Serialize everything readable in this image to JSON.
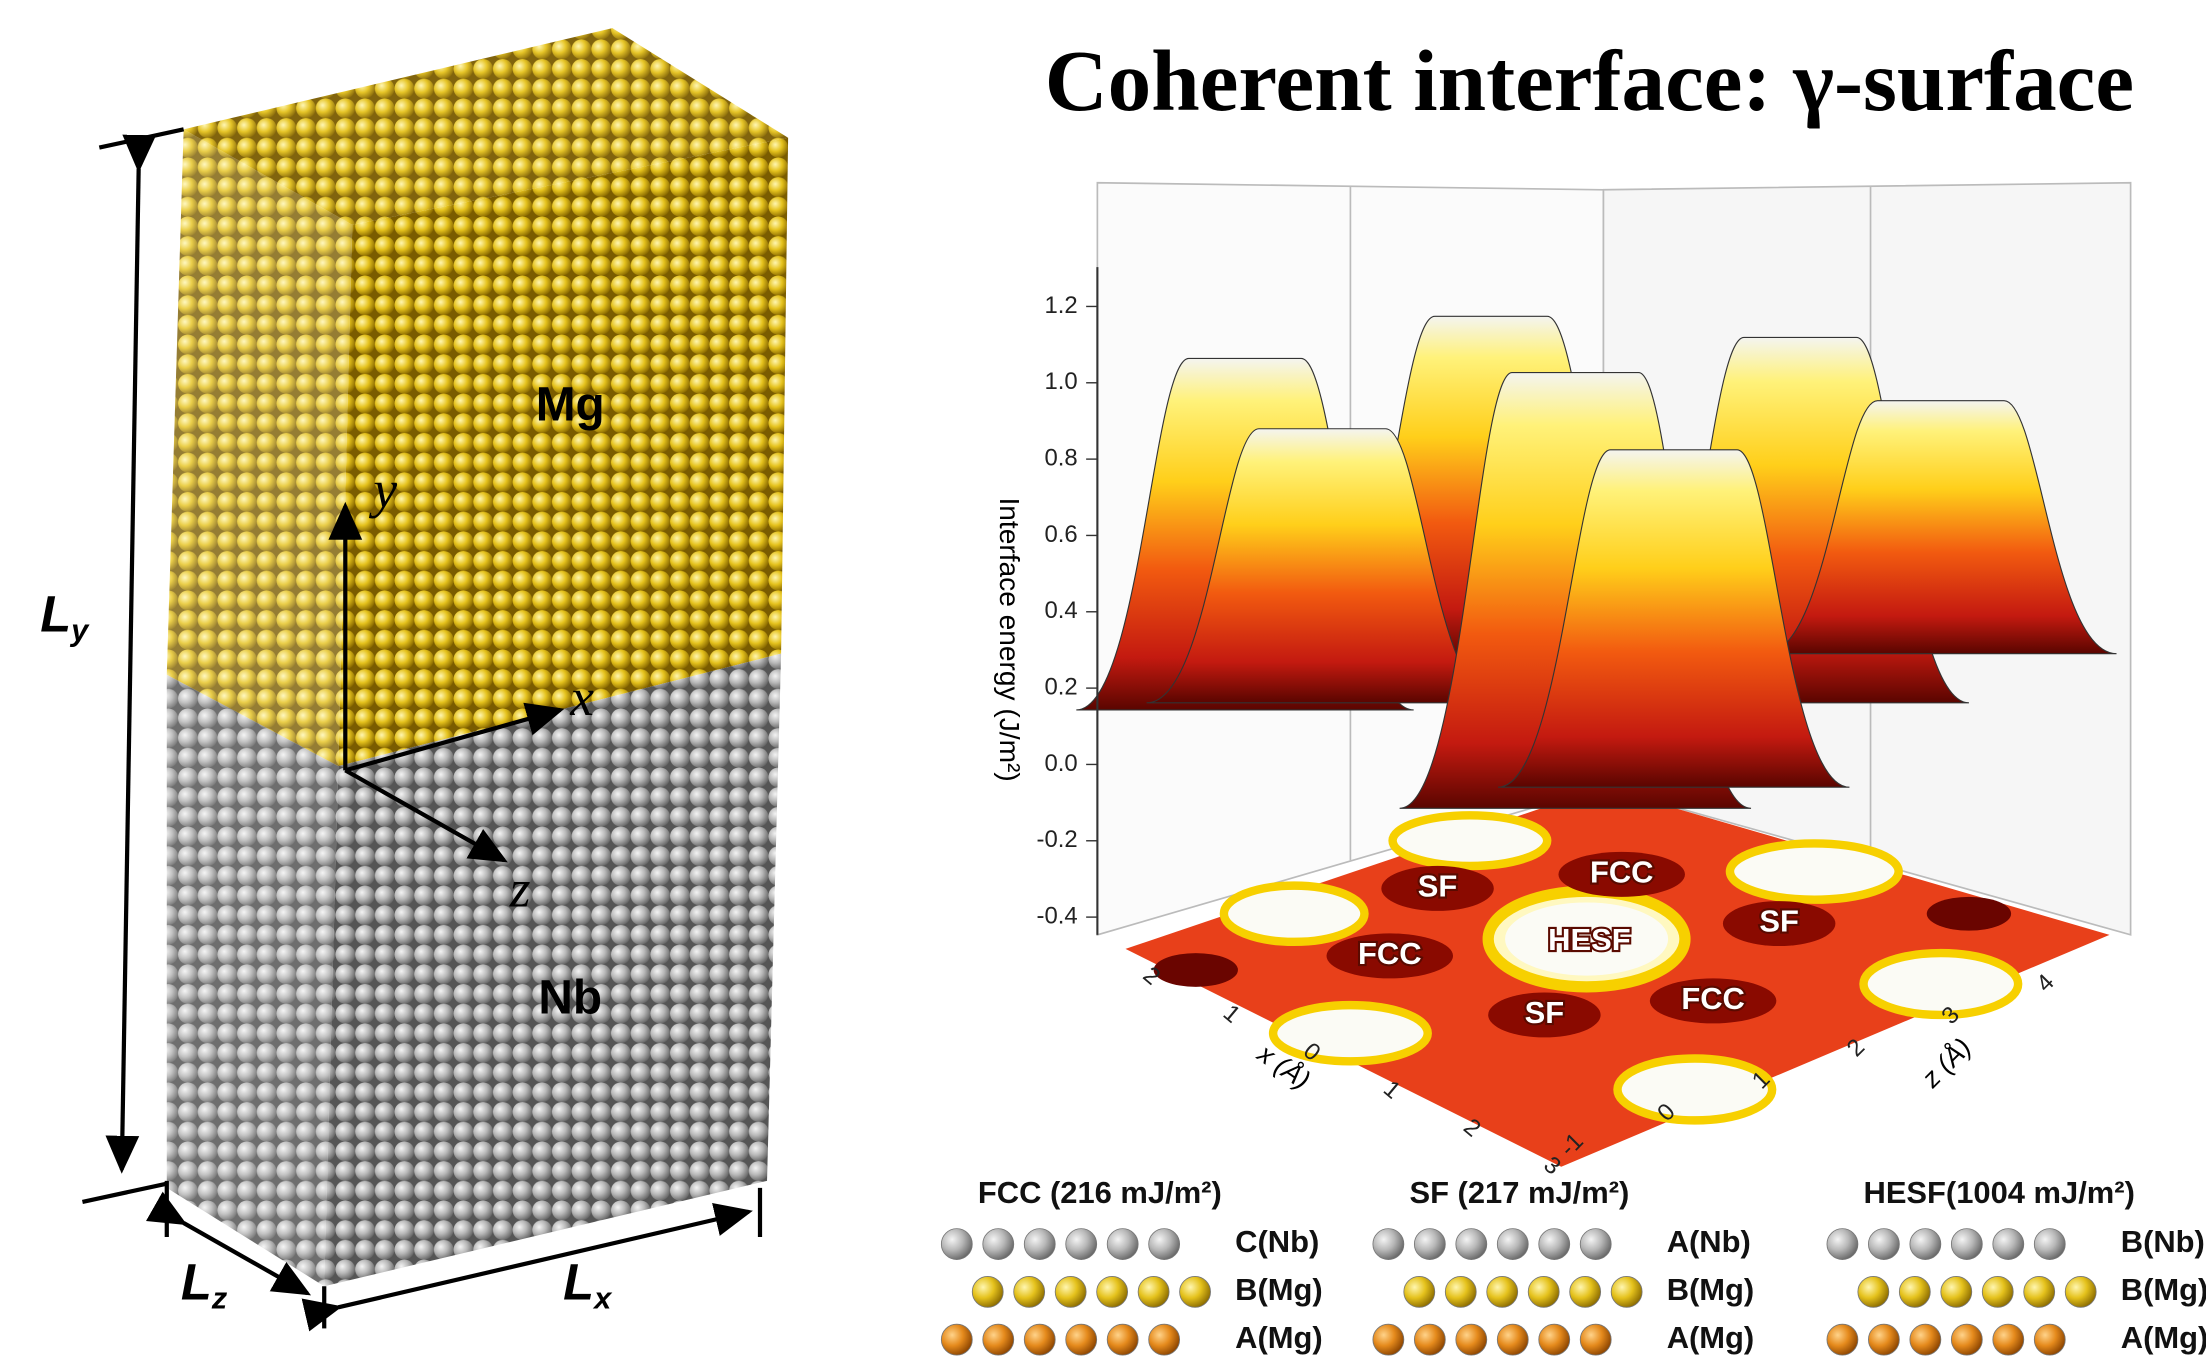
{
  "left_panel": {
    "upper_metal": "Mg",
    "lower_metal": "Nb",
    "dimensions": {
      "ly": {
        "main": "L",
        "sub": "y"
      },
      "lz": {
        "main": "L",
        "sub": "z"
      },
      "lx": {
        "main": "L",
        "sub": "x"
      }
    },
    "axes": {
      "y": "y",
      "x": "x",
      "z": "z"
    }
  },
  "right_panel": {
    "title": "Coherent interface: γ-surface",
    "plot": {
      "y_axis_label": "Interface energy (J/m²)",
      "y_ticks": [
        "1.2",
        "1.0",
        "0.8",
        "0.6",
        "0.4",
        "0.2",
        "0.0",
        "-0.2",
        "-0.4"
      ],
      "x_axis_label": "x (Å)",
      "x_ticks": [
        "2",
        "1",
        "0",
        "1",
        "2",
        "3"
      ],
      "z_axis_label": "z (Å)",
      "z_ticks": [
        "-1",
        "0",
        "1",
        "2",
        "3",
        "4"
      ],
      "regions": [
        "SF",
        "FCC",
        "FCC",
        "HESF",
        "SF",
        "SF",
        "FCC"
      ]
    },
    "stackings": [
      {
        "title": "FCC (216 mJ/m²)",
        "layers": [
          "C(Nb)",
          "B(Mg)",
          "A(Mg)"
        ]
      },
      {
        "title": "SF (217 mJ/m²)",
        "layers": [
          "A(Nb)",
          "B(Mg)",
          "A(Mg)"
        ]
      },
      {
        "title": "HESF(1004 mJ/m²)",
        "layers": [
          "B(Nb)",
          "B(Mg)",
          "A(Mg)"
        ]
      }
    ]
  }
}
